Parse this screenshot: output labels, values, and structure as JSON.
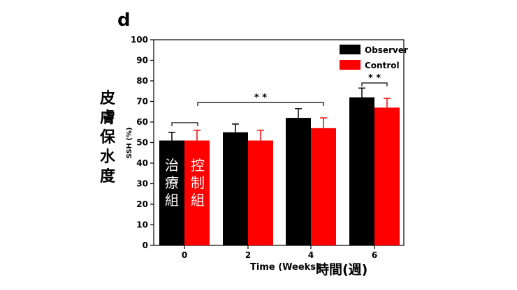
{
  "panel_label": "d",
  "cn_ylabel": [
    "皮",
    "膚",
    "保",
    "水",
    "度"
  ],
  "bar_labels": {
    "observer_group": [
      "治",
      "療",
      "組"
    ],
    "control_group": [
      "控",
      "制",
      "組"
    ]
  },
  "cn_xlabel": "時間(週)",
  "significance": "* *",
  "colors": {
    "observer": "#000000",
    "control": "#ff0000",
    "axis": "#000000"
  },
  "chart_data": {
    "type": "bar",
    "categories": [
      "0",
      "2",
      "4",
      "6"
    ],
    "series": [
      {
        "name": "Observer",
        "values": [
          51,
          55,
          62,
          72
        ],
        "errors": [
          4,
          4,
          4.5,
          4.5
        ],
        "color": "#000000"
      },
      {
        "name": "Control",
        "values": [
          51,
          51,
          57,
          67
        ],
        "errors": [
          5,
          5,
          5,
          4.5
        ],
        "color": "#ff0000"
      }
    ],
    "xlabel": "Time (Weeks)",
    "ylabel": "SSH (%)",
    "ylim": [
      0,
      100
    ],
    "yticks": [
      "0",
      "10",
      "20",
      "30",
      "40",
      "50",
      "60",
      "70",
      "80",
      "90",
      "100"
    ],
    "legend_position": "top-right",
    "grid": false
  }
}
